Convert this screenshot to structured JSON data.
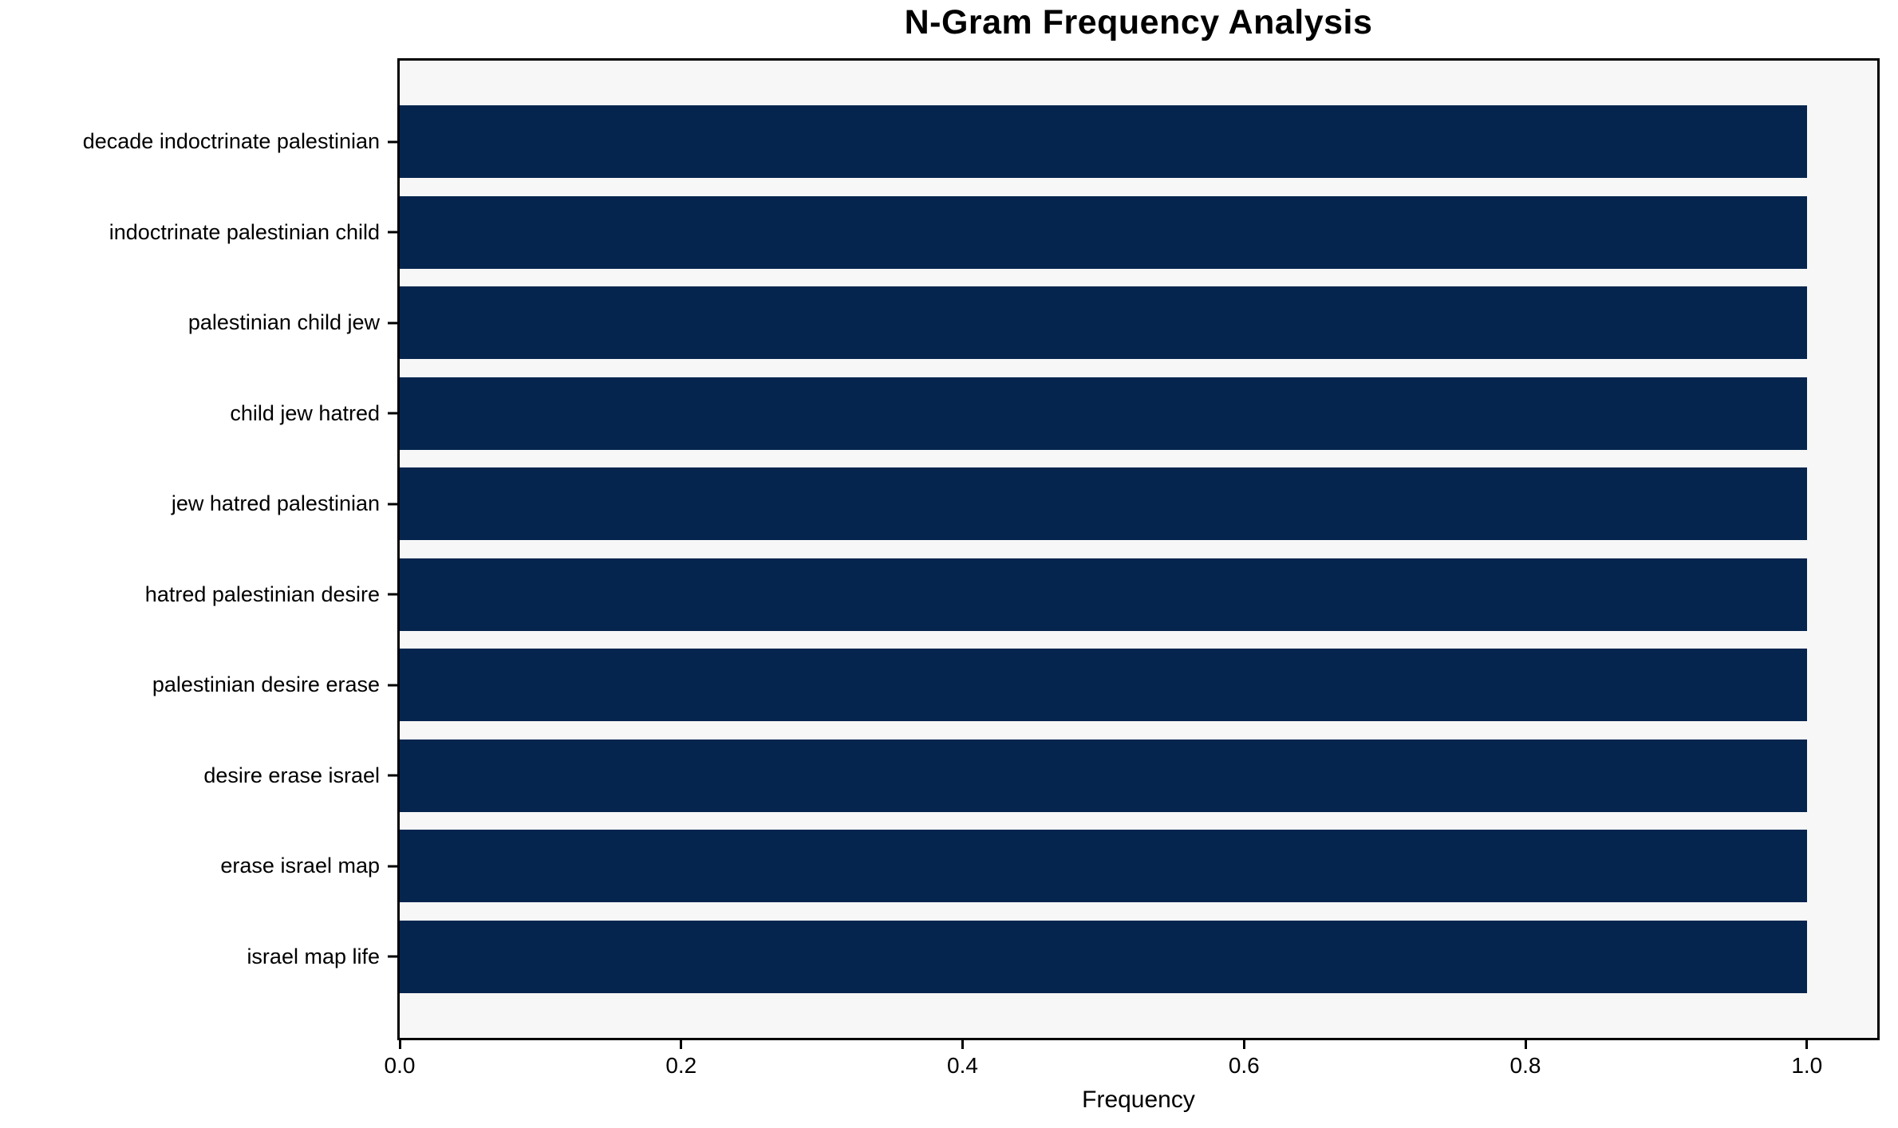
{
  "chart_data": {
    "type": "bar",
    "orientation": "horizontal",
    "title": "N-Gram Frequency Analysis",
    "xlabel": "Frequency",
    "ylabel": "",
    "categories": [
      "decade indoctrinate palestinian",
      "indoctrinate palestinian child",
      "palestinian child jew",
      "child jew hatred",
      "jew hatred palestinian",
      "hatred palestinian desire",
      "palestinian desire erase",
      "desire erase israel",
      "erase israel map",
      "israel map life"
    ],
    "values": [
      1.0,
      1.0,
      1.0,
      1.0,
      1.0,
      1.0,
      1.0,
      1.0,
      1.0,
      1.0
    ],
    "xlim": [
      0,
      1.05
    ],
    "xtick_labels": [
      "0.0",
      "0.2",
      "0.4",
      "0.6",
      "0.8",
      "1.0"
    ],
    "xtick_values": [
      0.0,
      0.2,
      0.4,
      0.6,
      0.8,
      1.0
    ],
    "bar_height_fraction": 0.8,
    "grid": false,
    "legend": null,
    "colors": {
      "bar": "#06254e",
      "plot_background": "#f7f7f7",
      "figure_background": "#ffffff",
      "spine": "#000000",
      "text": "#000000"
    }
  }
}
